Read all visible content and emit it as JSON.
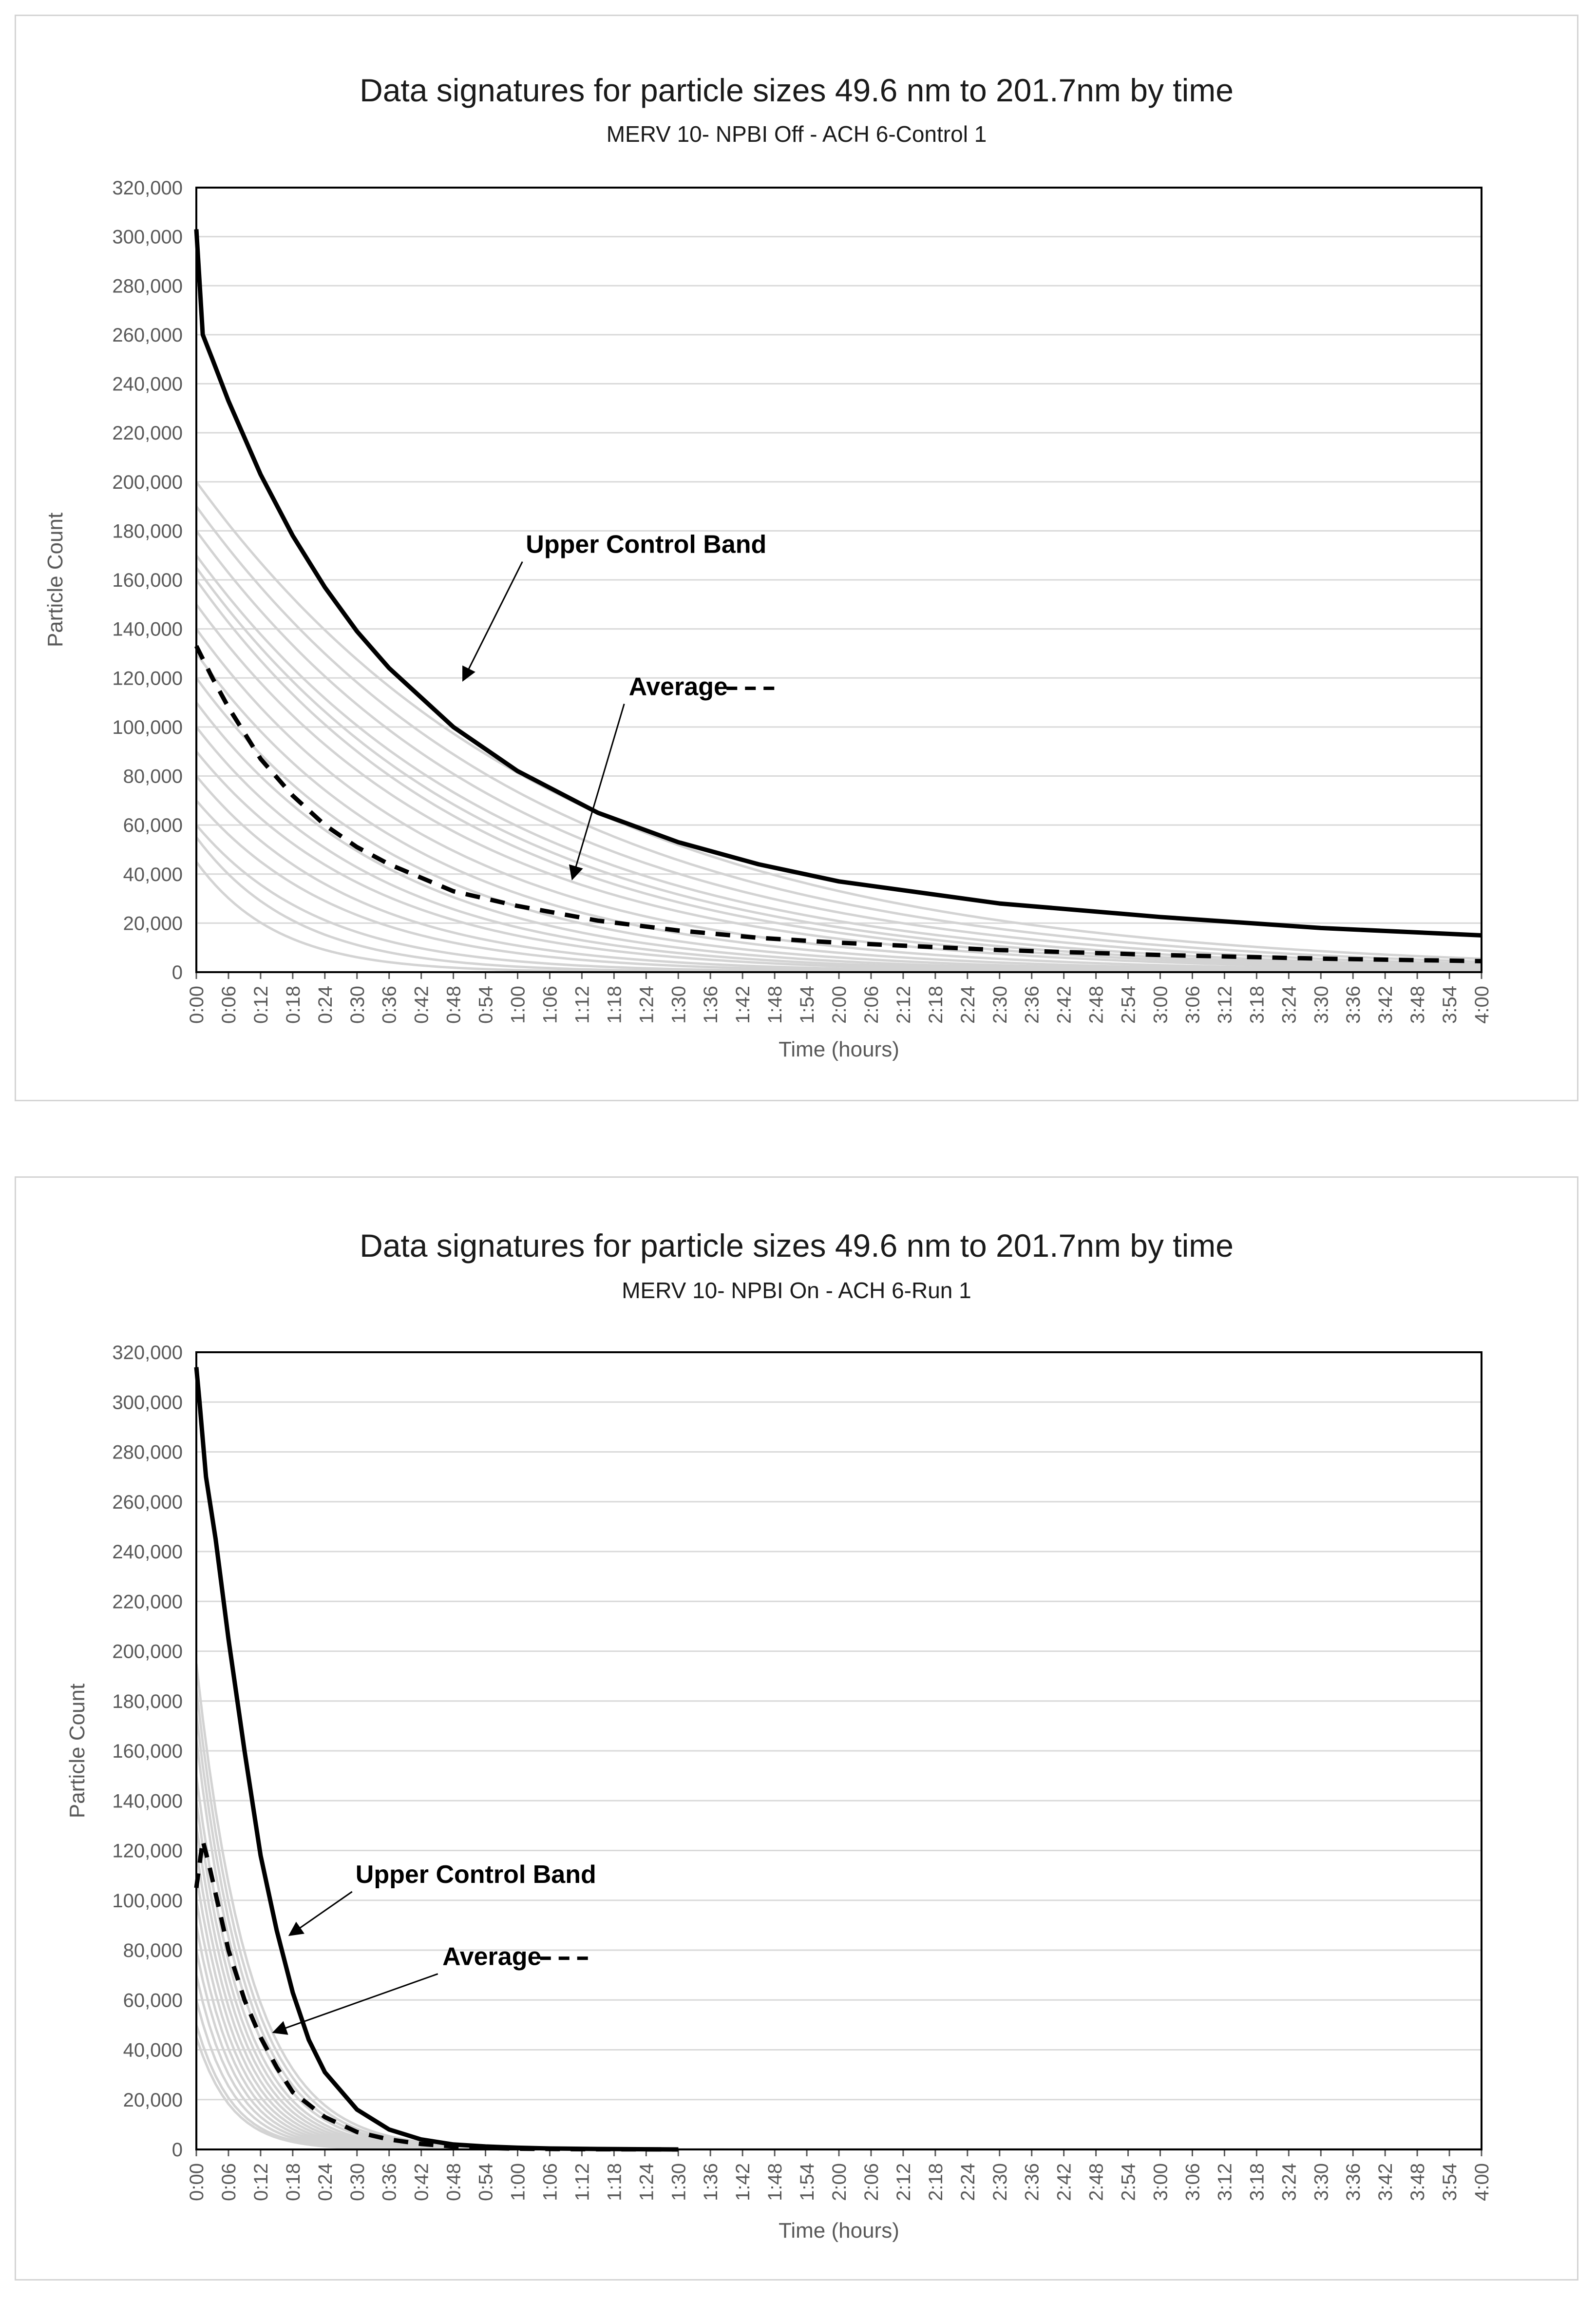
{
  "chart_data": [
    {
      "type": "line",
      "title": "Data signatures for particle sizes 49.6 nm to 201.7nm by time",
      "subtitle": "MERV 10- NPBI Off - ACH 6-Control 1",
      "xlabel": "Time (hours)",
      "ylabel": "Particle Count",
      "ylim": [
        0,
        320000
      ],
      "y_ticks": [
        "0",
        "20,000",
        "40,000",
        "60,000",
        "80,000",
        "100,000",
        "120,000",
        "140,000",
        "160,000",
        "180,000",
        "200,000",
        "220,000",
        "240,000",
        "260,000",
        "280,000",
        "300,000",
        "320,000"
      ],
      "x_ticks": [
        "0:00",
        "0:06",
        "0:12",
        "0:18",
        "0:24",
        "0:30",
        "0:36",
        "0:42",
        "0:48",
        "0:54",
        "1:00",
        "1:06",
        "1:12",
        "1:18",
        "1:24",
        "1:30",
        "1:36",
        "1:42",
        "1:48",
        "1:54",
        "2:00",
        "2:06",
        "2:12",
        "2:18",
        "2:24",
        "2:30",
        "2:36",
        "2:42",
        "2:48",
        "2:54",
        "3:00",
        "3:06",
        "3:12",
        "3:18",
        "3:24",
        "3:30",
        "3:36",
        "3:42",
        "3:48",
        "3:54",
        "4:00"
      ],
      "grid": true,
      "series": [
        {
          "name": "Upper Control Band",
          "color": "#000000",
          "style": "solid",
          "x": [
            0,
            0.02,
            0.05,
            0.1,
            0.2,
            0.3,
            0.4,
            0.5,
            0.6,
            0.8,
            1.0,
            1.25,
            1.5,
            1.75,
            2.0,
            2.5,
            3.0,
            3.5,
            4.0
          ],
          "values": [
            303000,
            260000,
            250000,
            233000,
            203000,
            178000,
            157000,
            139000,
            124000,
            100000,
            82000,
            65000,
            53000,
            44000,
            37000,
            28000,
            22500,
            18000,
            15000
          ]
        },
        {
          "name": "Average",
          "color": "#000000",
          "style": "dashed",
          "x": [
            0,
            0.05,
            0.1,
            0.2,
            0.3,
            0.4,
            0.5,
            0.6,
            0.8,
            1.0,
            1.25,
            1.5,
            1.75,
            2.0,
            2.5,
            3.0,
            3.5,
            4.0
          ],
          "values": [
            133000,
            120000,
            108000,
            87000,
            72000,
            60000,
            51000,
            44000,
            33000,
            27000,
            21000,
            17000,
            14000,
            12000,
            9000,
            7000,
            5500,
            4500
          ]
        }
      ],
      "background_curves": {
        "color": "#d3d3d3",
        "count": 18,
        "start_values": [
          200000,
          190000,
          180000,
          170000,
          165000,
          160000,
          150000,
          140000,
          130000,
          120000,
          110000,
          100000,
          90000,
          80000,
          70000,
          60000,
          55000,
          45000
        ],
        "decay_per_hour": [
          0.9,
          0.95,
          1.0,
          1.05,
          1.1,
          1.15,
          1.2,
          1.3,
          1.4,
          1.5,
          1.6,
          1.7,
          1.8,
          2.0,
          2.2,
          2.6,
          3.2,
          4.0
        ]
      },
      "annotations": [
        {
          "text": "Upper Control Band",
          "label_x": 1.4,
          "label_y": 171000,
          "arrow_to_x": 0.83,
          "arrow_to_y": 119000
        },
        {
          "text": "Average",
          "label_x": 1.5,
          "label_y": 113000,
          "arrow_to_x": 1.17,
          "arrow_to_y": 38000,
          "legend_dash": true
        }
      ]
    },
    {
      "type": "line",
      "title": "Data signatures for particle sizes 49.6 nm to 201.7nm by time",
      "subtitle": "MERV 10- NPBI On - ACH 6-Run 1",
      "xlabel": "Time (hours)",
      "ylabel": "Particle Count",
      "ylim": [
        0,
        320000
      ],
      "y_ticks": [
        "0",
        "20,000",
        "40,000",
        "60,000",
        "80,000",
        "100,000",
        "120,000",
        "140,000",
        "160,000",
        "180,000",
        "200,000",
        "220,000",
        "240,000",
        "260,000",
        "280,000",
        "300,000",
        "320,000"
      ],
      "x_ticks": [
        "0:00",
        "0:06",
        "0:12",
        "0:18",
        "0:24",
        "0:30",
        "0:36",
        "0:42",
        "0:48",
        "0:54",
        "1:00",
        "1:06",
        "1:12",
        "1:18",
        "1:24",
        "1:30",
        "1:36",
        "1:42",
        "1:48",
        "1:54",
        "2:00",
        "2:06",
        "2:12",
        "2:18",
        "2:24",
        "2:30",
        "2:36",
        "2:42",
        "2:48",
        "2:54",
        "3:00",
        "3:06",
        "3:12",
        "3:18",
        "3:24",
        "3:30",
        "3:36",
        "3:42",
        "3:48",
        "3:54",
        "4:00"
      ],
      "grid": true,
      "series": [
        {
          "name": "Upper Control Band",
          "color": "#000000",
          "style": "solid",
          "x": [
            0,
            0.01,
            0.03,
            0.06,
            0.1,
            0.15,
            0.2,
            0.25,
            0.3,
            0.35,
            0.4,
            0.5,
            0.6,
            0.7,
            0.8,
            0.9,
            1.0,
            1.1,
            1.25,
            1.5
          ],
          "values": [
            314000,
            300000,
            270000,
            245000,
            205000,
            160000,
            118000,
            88000,
            63000,
            44000,
            31000,
            16000,
            8000,
            4000,
            2000,
            1200,
            700,
            400,
            200,
            0
          ]
        },
        {
          "name": "Average",
          "color": "#000000",
          "style": "dashed",
          "x": [
            0,
            0.02,
            0.04,
            0.07,
            0.1,
            0.15,
            0.2,
            0.25,
            0.3,
            0.4,
            0.5,
            0.6,
            0.7,
            0.8,
            0.9,
            1.0,
            1.2,
            1.5
          ],
          "values": [
            105000,
            124000,
            114000,
            97000,
            80000,
            60000,
            45000,
            33000,
            23000,
            13000,
            7000,
            4000,
            2200,
            1200,
            600,
            300,
            100,
            0
          ]
        }
      ],
      "background_curves": {
        "color": "#d3d3d3",
        "count": 16,
        "start_values": [
          195000,
          185000,
          175000,
          165000,
          150000,
          140000,
          130000,
          120000,
          110000,
          100000,
          90000,
          80000,
          70000,
          60000,
          50000,
          45000
        ],
        "decay_per_hour": [
          6.0,
          6.2,
          6.4,
          6.6,
          6.8,
          7.0,
          7.2,
          7.4,
          7.6,
          7.8,
          8.0,
          8.2,
          8.4,
          8.6,
          8.8,
          9.0
        ]
      },
      "annotations": [
        {
          "text": "Upper Control Band",
          "label_x": 0.87,
          "label_y": 107000,
          "arrow_to_x": 0.29,
          "arrow_to_y": 86000
        },
        {
          "text": "Average",
          "label_x": 0.92,
          "label_y": 74000,
          "arrow_to_x": 0.24,
          "arrow_to_y": 47000,
          "legend_dash": true
        }
      ]
    }
  ]
}
